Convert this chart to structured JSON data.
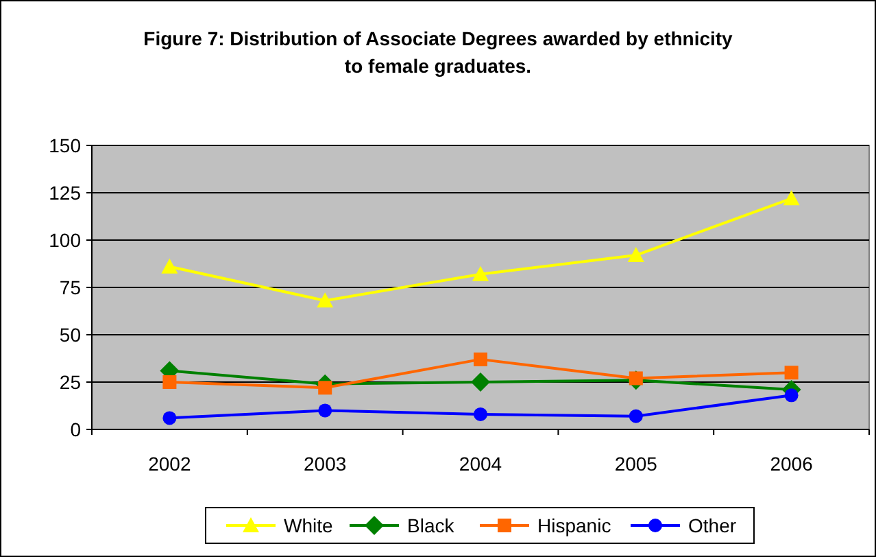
{
  "chart_data": {
    "type": "line",
    "title": "Figure 7: Distribution of Associate Degrees awarded by ethnicity to female graduates.",
    "categories": [
      "2002",
      "2003",
      "2004",
      "2005",
      "2006"
    ],
    "series": [
      {
        "name": "White",
        "color": "#ffff00",
        "marker": "triangle",
        "values": [
          86,
          68,
          82,
          92,
          122
        ]
      },
      {
        "name": "Black",
        "color": "#008000",
        "marker": "diamond",
        "values": [
          31,
          24,
          25,
          26,
          21
        ]
      },
      {
        "name": "Hispanic",
        "color": "#ff6600",
        "marker": "square",
        "values": [
          25,
          22,
          37,
          27,
          30
        ]
      },
      {
        "name": "Other",
        "color": "#0000ff",
        "marker": "circle",
        "values": [
          6,
          10,
          8,
          7,
          18
        ]
      }
    ],
    "ylim": [
      0,
      150
    ],
    "yticks": [
      0,
      25,
      50,
      75,
      100,
      125,
      150
    ],
    "grid": "y",
    "legend": "bottom"
  }
}
